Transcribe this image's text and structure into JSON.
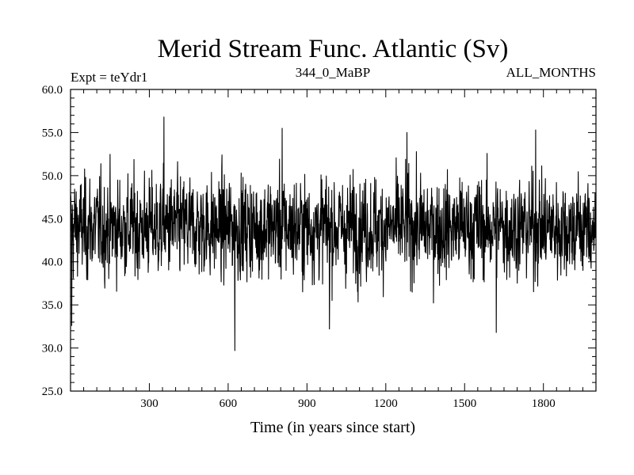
{
  "chart_data": {
    "type": "line",
    "title": "Merid Stream Func. Atlantic (Sv)",
    "subtitle_left": "Expt = teYdr1",
    "subtitle_center": "344_0_MaBP",
    "subtitle_right": "ALL_MONTHS",
    "xlabel": "Time (in years since start)",
    "ylabel": "",
    "xlim": [
      0,
      2000
    ],
    "ylim": [
      25.0,
      60.0
    ],
    "x_ticks": [
      300,
      600,
      900,
      1200,
      1500,
      1800
    ],
    "x_tick_labels": [
      "300",
      "600",
      "900",
      "1200",
      "1500",
      "1800"
    ],
    "y_ticks": [
      25.0,
      30.0,
      35.0,
      40.0,
      45.0,
      50.0,
      55.0,
      60.0
    ],
    "y_tick_labels": [
      "25.0",
      "30.0",
      "35.0",
      "40.0",
      "45.0",
      "50.0",
      "55.0",
      "60.0"
    ],
    "series": [
      {
        "name": "teYdr1",
        "color": "#000000",
        "n_points": 2000,
        "mean": 44.0,
        "approx_range": [
          29.7,
          56.8
        ],
        "notable_points": [
          {
            "x": 4,
            "y": 32.6
          },
          {
            "x": 355,
            "y": 56.8
          },
          {
            "x": 625,
            "y": 29.7
          },
          {
            "x": 805,
            "y": 55.5
          },
          {
            "x": 985,
            "y": 32.2
          },
          {
            "x": 1280,
            "y": 55.0
          },
          {
            "x": 1620,
            "y": 31.8
          },
          {
            "x": 1770,
            "y": 55.3
          }
        ]
      }
    ]
  }
}
